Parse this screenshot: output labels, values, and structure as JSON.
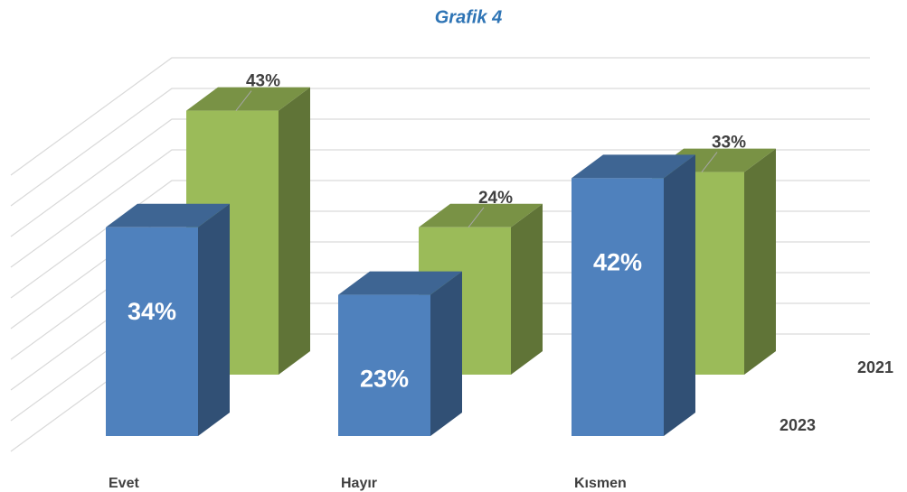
{
  "chart_data": {
    "type": "bar3d",
    "title": "Grafik 4",
    "categories": [
      "Evet",
      "Hayır",
      "Kısmen"
    ],
    "series": [
      {
        "name": "2021",
        "color": "#9bbb59",
        "values": [
          43,
          24,
          33
        ],
        "value_labels": [
          "43%",
          "24%",
          "33%"
        ]
      },
      {
        "name": "2023",
        "color": "#4f81bd",
        "values": [
          34,
          23,
          42
        ],
        "value_labels": [
          "34%",
          "23%",
          "42%"
        ]
      }
    ],
    "ylim": [
      0,
      50
    ],
    "grid": true
  }
}
